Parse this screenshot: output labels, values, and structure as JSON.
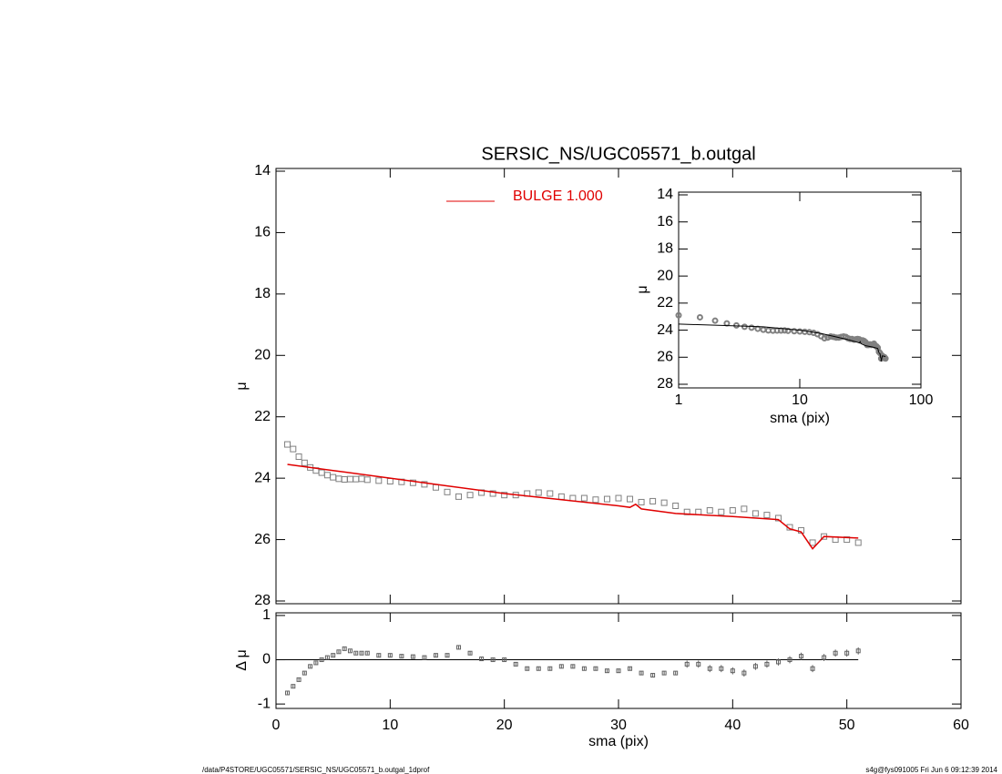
{
  "chart_data": [
    {
      "type": "scatter",
      "title": "SERSIC_NS/UGC05571_b.outgal",
      "ylabel": "μ",
      "xlim": [
        0,
        60
      ],
      "ylim": [
        28,
        14
      ],
      "yticks": [
        14,
        16,
        18,
        20,
        22,
        24,
        26,
        28
      ],
      "series": [
        {
          "color": "#808080",
          "marker": "square",
          "x": [
            1,
            1.5,
            2,
            2.5,
            3,
            3.5,
            4,
            4.5,
            5,
            5.5,
            6,
            6.5,
            7,
            7.5,
            8,
            9,
            10,
            11,
            12,
            13,
            14,
            15,
            16,
            17,
            18,
            19,
            20,
            21,
            22,
            23,
            24,
            25,
            26,
            27,
            28,
            29,
            30,
            31,
            32,
            33,
            34,
            35,
            36,
            37,
            38,
            39,
            40,
            41,
            42,
            43,
            44,
            45,
            46,
            47,
            48,
            49,
            50,
            51
          ],
          "values": [
            22.9,
            23.05,
            23.3,
            23.5,
            23.65,
            23.75,
            23.82,
            23.9,
            23.97,
            24.02,
            24.04,
            24.03,
            24.03,
            24.02,
            24.05,
            24.08,
            24.1,
            24.12,
            24.15,
            24.2,
            24.3,
            24.45,
            24.6,
            24.55,
            24.47,
            24.5,
            24.55,
            24.55,
            24.5,
            24.47,
            24.5,
            24.6,
            24.65,
            24.65,
            24.7,
            24.68,
            24.65,
            24.68,
            24.78,
            24.75,
            24.8,
            24.9,
            25.1,
            25.1,
            25.05,
            25.1,
            25.05,
            25.0,
            25.15,
            25.2,
            25.3,
            25.6,
            25.7,
            26.1,
            25.9,
            26.0,
            26.0,
            26.1
          ]
        },
        {
          "name": "BULGE  1.000",
          "color": "#e00000",
          "x": [
            1,
            5,
            10,
            15,
            20,
            25,
            30,
            31,
            31.5,
            32,
            35,
            40,
            44,
            45,
            46,
            47,
            48,
            51
          ],
          "values": [
            23.55,
            23.75,
            24.0,
            24.25,
            24.5,
            24.7,
            24.9,
            24.95,
            24.85,
            25.0,
            25.15,
            25.25,
            25.35,
            25.65,
            25.75,
            26.3,
            25.9,
            25.95
          ]
        }
      ]
    },
    {
      "type": "errorbar",
      "xlabel": "sma (pix)",
      "ylabel": "Δ μ",
      "color": "#606060",
      "xlim": [
        0,
        60
      ],
      "xticks": [
        0,
        10,
        20,
        30,
        40,
        50,
        60
      ],
      "ylim": [
        -1.1,
        1.06
      ],
      "yticks": [
        -1,
        0,
        1
      ],
      "hline": 0,
      "values": [
        -0.75,
        -0.6,
        -0.45,
        -0.3,
        -0.15,
        -0.07,
        0,
        0.05,
        0.1,
        0.18,
        0.25,
        0.2,
        0.15,
        0.15,
        0.15,
        0.1,
        0.1,
        0.08,
        0.07,
        0.05,
        0.1,
        0.1,
        0.28,
        0.15,
        0.02,
        0,
        0,
        -0.1,
        -0.2,
        -0.2,
        -0.2,
        -0.15,
        -0.15,
        -0.2,
        -0.2,
        -0.25,
        -0.25,
        -0.2,
        -0.3,
        -0.35,
        -0.3,
        -0.3,
        -0.1,
        -0.1,
        -0.2,
        -0.2,
        -0.25,
        -0.3,
        -0.15,
        -0.1,
        -0.05,
        0,
        0.08,
        -0.2,
        0.05,
        0.15,
        0.15,
        0.2
      ],
      "errors": [
        0.03,
        0.03,
        0.03,
        0.03,
        0.03,
        0.03,
        0.03,
        0.03,
        0.03,
        0.03,
        0.03,
        0.03,
        0.03,
        0.03,
        0.03,
        0.04,
        0.04,
        0.04,
        0.04,
        0.04,
        0.04,
        0.04,
        0.04,
        0.04,
        0.04,
        0.04,
        0.04,
        0.04,
        0.04,
        0.04,
        0.04,
        0.04,
        0.04,
        0.04,
        0.04,
        0.04,
        0.04,
        0.04,
        0.04,
        0.04,
        0.04,
        0.04,
        0.08,
        0.08,
        0.08,
        0.08,
        0.08,
        0.08,
        0.08,
        0.08,
        0.08,
        0.08,
        0.08,
        0.08,
        0.08,
        0.08,
        0.08,
        0.08
      ]
    },
    {
      "type": "inset",
      "xlabel": "sma (pix)",
      "ylabel": "μ",
      "xscale": "log",
      "xlim": [
        1,
        100
      ],
      "xticks": [
        1,
        10,
        100
      ],
      "ylim": [
        28,
        14
      ],
      "yticks": [
        14,
        16,
        18,
        20,
        22,
        24,
        26,
        28
      ]
    }
  ],
  "footer": {
    "left": "/data/P4STORE/UGC05571/SERSIC_NS/UGC05571_b.outgal_1dprof",
    "right": "s4g@fys091005  Fri Jun  6 09:12:39 2014"
  }
}
